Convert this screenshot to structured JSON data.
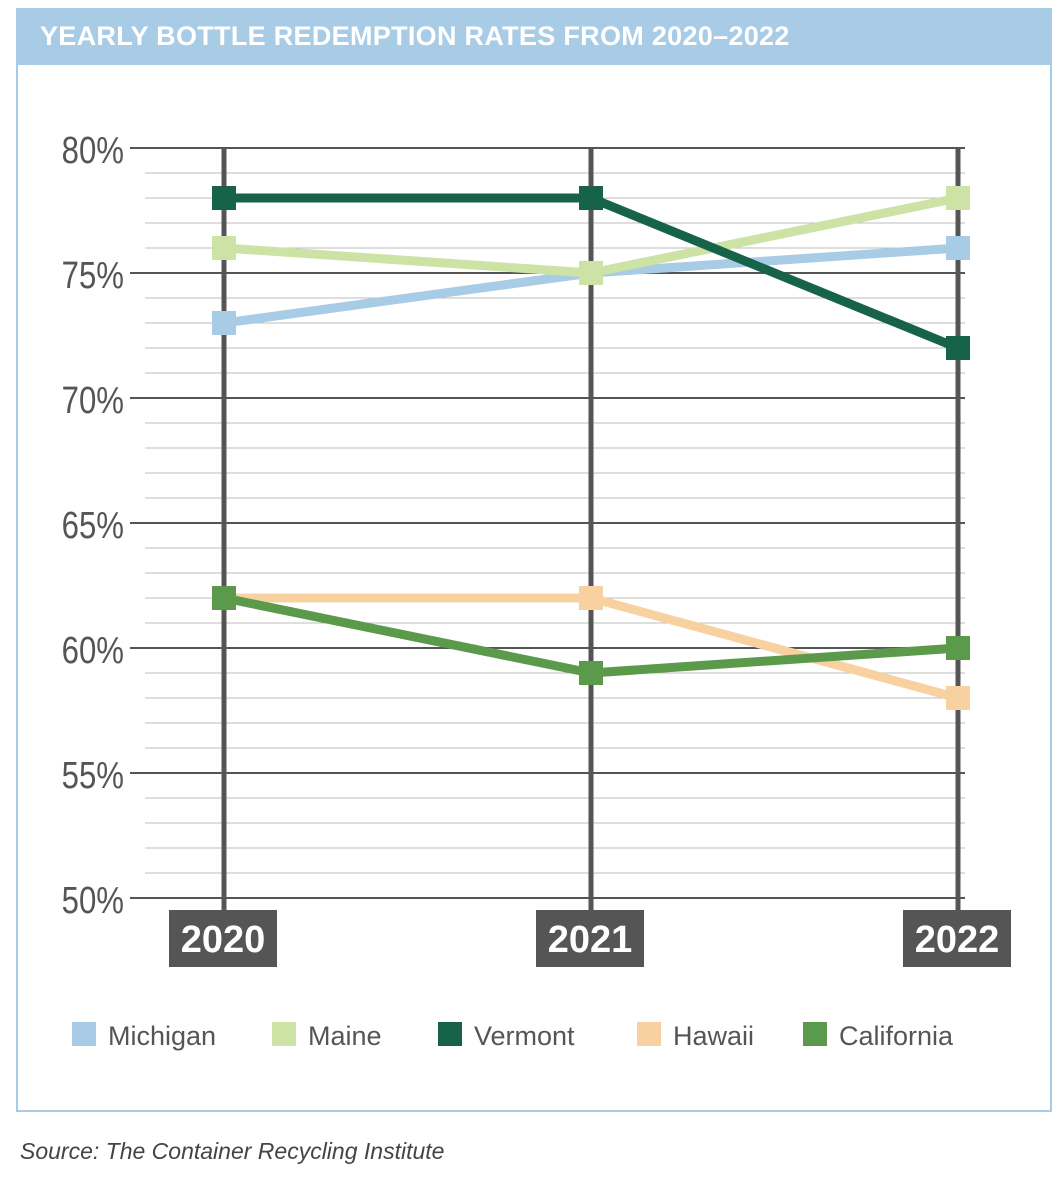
{
  "colors": {
    "frame": "#a9cce6",
    "grid_minor": "#bdbdbd",
    "grid_major": "#555555",
    "year_box": "#555555",
    "axis_text": "#555555"
  },
  "chart_data": {
    "type": "line",
    "title": "YEARLY BOTTLE REDEMPTION RATES FROM 2020–2022",
    "categories": [
      "2020",
      "2021",
      "2022"
    ],
    "ylim": [
      50,
      80
    ],
    "yticks": [
      80,
      75,
      70,
      65,
      60,
      55,
      50
    ],
    "ytick_labels": [
      "80%",
      "75%",
      "70%",
      "65%",
      "60%",
      "55%",
      "50%"
    ],
    "ytick_minor_step": 1,
    "grid": true,
    "legend_position": "bottom",
    "series": [
      {
        "name": "Michigan",
        "color": "#a9cce6",
        "values": [
          73,
          75,
          76
        ]
      },
      {
        "name": "Maine",
        "color": "#cde3a6",
        "values": [
          76,
          75,
          78
        ]
      },
      {
        "name": "Vermont",
        "color": "#17634a",
        "values": [
          78,
          78,
          72
        ]
      },
      {
        "name": "Hawaii",
        "color": "#f7d2a0",
        "values": [
          62,
          62,
          58
        ]
      },
      {
        "name": "California",
        "color": "#5a9a4a",
        "values": [
          62,
          59,
          60
        ]
      }
    ]
  },
  "source": {
    "label": "Source:",
    "text": "The Container Recycling Institute"
  }
}
